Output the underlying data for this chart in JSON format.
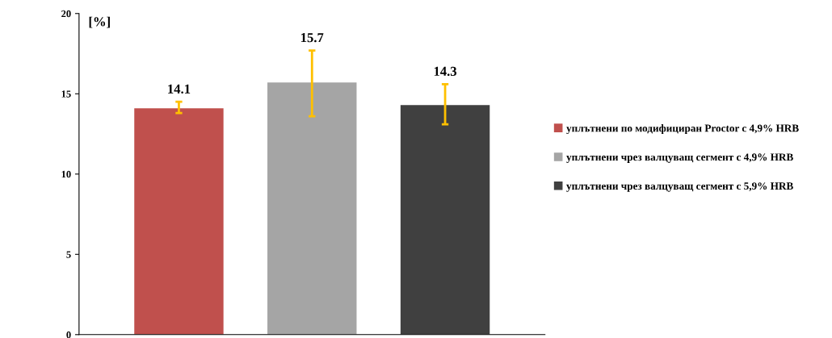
{
  "chart_data": {
    "type": "bar",
    "ylabel": "[%]",
    "categories": [
      null,
      null,
      null
    ],
    "series": [
      {
        "name": "уплътнени по модифициран Proctor с 4,9% HRB",
        "color": "#c0504d",
        "values": [
          14.1,
          null,
          null
        ],
        "errors": [
          [
            13.8,
            14.5
          ],
          null,
          null
        ]
      },
      {
        "name": "уплътнени чрез валцуващ сегмент с 4,9% HRB",
        "color": "#a5a5a5",
        "values": [
          null,
          15.7,
          null
        ],
        "errors": [
          null,
          [
            13.6,
            17.7
          ],
          null
        ]
      },
      {
        "name": "уплътнени чрез валцуващ сегмент с 5,9% HRB",
        "color": "#404040",
        "values": [
          null,
          null,
          14.3
        ],
        "errors": [
          null,
          null,
          [
            13.1,
            15.6
          ]
        ]
      }
    ],
    "ylim": [
      0,
      20
    ],
    "yticks": [
      0,
      5,
      10,
      15,
      20
    ],
    "data_labels": true,
    "legend": "right",
    "grid": false
  }
}
